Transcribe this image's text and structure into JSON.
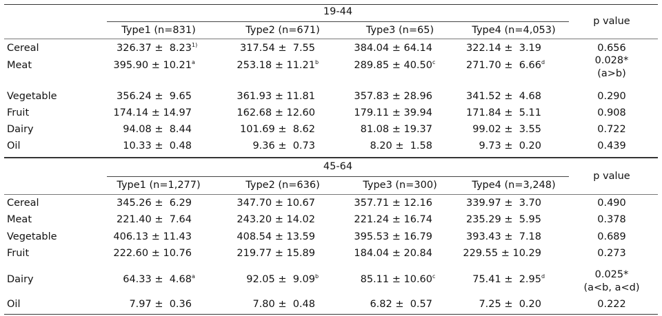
{
  "sections": [
    {
      "age_group": "19-44",
      "p_value_header": "p value",
      "types": [
        "Type1 (n=831)",
        "Type2 (n=671)",
        "Type3 (n=65)",
        "Type4 (n=4,053)"
      ],
      "rows": [
        {
          "label": "Cereal",
          "values": [
            {
              "v": "326.37 ±  8.23",
              "sup": "1)"
            },
            {
              "v": "317.54 ±  7.55",
              "sup": ""
            },
            {
              "v": "384.04 ± 64.14",
              "sup": ""
            },
            {
              "v": "322.14 ±  3.19",
              "sup": ""
            }
          ],
          "p": "0.656",
          "p2": ""
        },
        {
          "label": "Meat",
          "values": [
            {
              "v": "395.90 ± 10.21",
              "sup": "a"
            },
            {
              "v": "253.18 ± 11.21",
              "sup": "b"
            },
            {
              "v": "289.85 ± 40.50",
              "sup": "c"
            },
            {
              "v": "271.70 ±  6.66",
              "sup": "d"
            }
          ],
          "p": "0.028*",
          "p2": "(a>b)"
        },
        {
          "label": "Vegetable",
          "values": [
            {
              "v": "356.24 ±  9.65",
              "sup": ""
            },
            {
              "v": "361.93 ± 11.81",
              "sup": ""
            },
            {
              "v": "357.83 ± 28.96",
              "sup": ""
            },
            {
              "v": "341.52 ±  4.68",
              "sup": ""
            }
          ],
          "p": "0.290",
          "p2": ""
        },
        {
          "label": "Fruit",
          "values": [
            {
              "v": "174.14 ± 14.97",
              "sup": ""
            },
            {
              "v": "162.68 ± 12.60",
              "sup": ""
            },
            {
              "v": "179.11 ± 39.94",
              "sup": ""
            },
            {
              "v": "171.84 ±  5.11",
              "sup": ""
            }
          ],
          "p": "0.908",
          "p2": ""
        },
        {
          "label": "Dairy",
          "values": [
            {
              "v": "94.08 ±  8.44",
              "sup": ""
            },
            {
              "v": "101.69 ±  8.62",
              "sup": ""
            },
            {
              "v": "81.08 ± 19.37",
              "sup": ""
            },
            {
              "v": "99.02 ±  3.55",
              "sup": ""
            }
          ],
          "p": "0.722",
          "p2": ""
        },
        {
          "label": "Oil",
          "values": [
            {
              "v": "10.33 ±  0.48",
              "sup": ""
            },
            {
              "v": "9.36 ±  0.73",
              "sup": ""
            },
            {
              "v": "8.20 ±  1.58",
              "sup": ""
            },
            {
              "v": "9.73 ±  0.20",
              "sup": ""
            }
          ],
          "p": "0.439",
          "p2": ""
        }
      ]
    },
    {
      "age_group": "45-64",
      "p_value_header": "p value",
      "types": [
        "Type1 (n=1,277)",
        "Type2 (n=636)",
        "Type3 (n=300)",
        "Type4 (n=3,248)"
      ],
      "rows": [
        {
          "label": "Cereal",
          "values": [
            {
              "v": "345.26 ±  6.29",
              "sup": ""
            },
            {
              "v": "347.70 ± 10.67",
              "sup": ""
            },
            {
              "v": "357.71 ± 12.16",
              "sup": ""
            },
            {
              "v": "339.97 ±  3.70",
              "sup": ""
            }
          ],
          "p": "0.490",
          "p2": ""
        },
        {
          "label": "Meat",
          "values": [
            {
              "v": "221.40 ±  7.64",
              "sup": ""
            },
            {
              "v": "243.20 ± 14.02",
              "sup": ""
            },
            {
              "v": "221.24 ± 16.74",
              "sup": ""
            },
            {
              "v": "235.29 ±  5.95",
              "sup": ""
            }
          ],
          "p": "0.378",
          "p2": ""
        },
        {
          "label": "Vegetable",
          "values": [
            {
              "v": "406.13 ± 11.43",
              "sup": ""
            },
            {
              "v": "408.54 ± 13.59",
              "sup": ""
            },
            {
              "v": "395.53 ± 16.79",
              "sup": ""
            },
            {
              "v": "393.43 ±  7.18",
              "sup": ""
            }
          ],
          "p": "0.689",
          "p2": ""
        },
        {
          "label": "Fruit",
          "values": [
            {
              "v": "222.60 ± 10.76",
              "sup": ""
            },
            {
              "v": "219.77 ± 15.89",
              "sup": ""
            },
            {
              "v": "184.04 ± 20.84",
              "sup": ""
            },
            {
              "v": "229.55 ± 10.29",
              "sup": ""
            }
          ],
          "p": "0.273",
          "p2": ""
        },
        {
          "label": "Dairy",
          "values": [
            {
              "v": "64.33 ±  4.68",
              "sup": "a"
            },
            {
              "v": "92.05 ±  9.09",
              "sup": "b"
            },
            {
              "v": "85.11 ± 10.60",
              "sup": "c"
            },
            {
              "v": "75.41 ±  2.95",
              "sup": "d"
            }
          ],
          "p": "0.025*",
          "p2": "(a<b, a<d)"
        },
        {
          "label": "Oil",
          "values": [
            {
              "v": "7.97 ±  0.36",
              "sup": ""
            },
            {
              "v": "7.80 ±  0.48",
              "sup": ""
            },
            {
              "v": "6.82 ±  0.57",
              "sup": ""
            },
            {
              "v": "7.25 ±  0.20",
              "sup": ""
            }
          ],
          "p": "0.222",
          "p2": ""
        }
      ]
    }
  ]
}
